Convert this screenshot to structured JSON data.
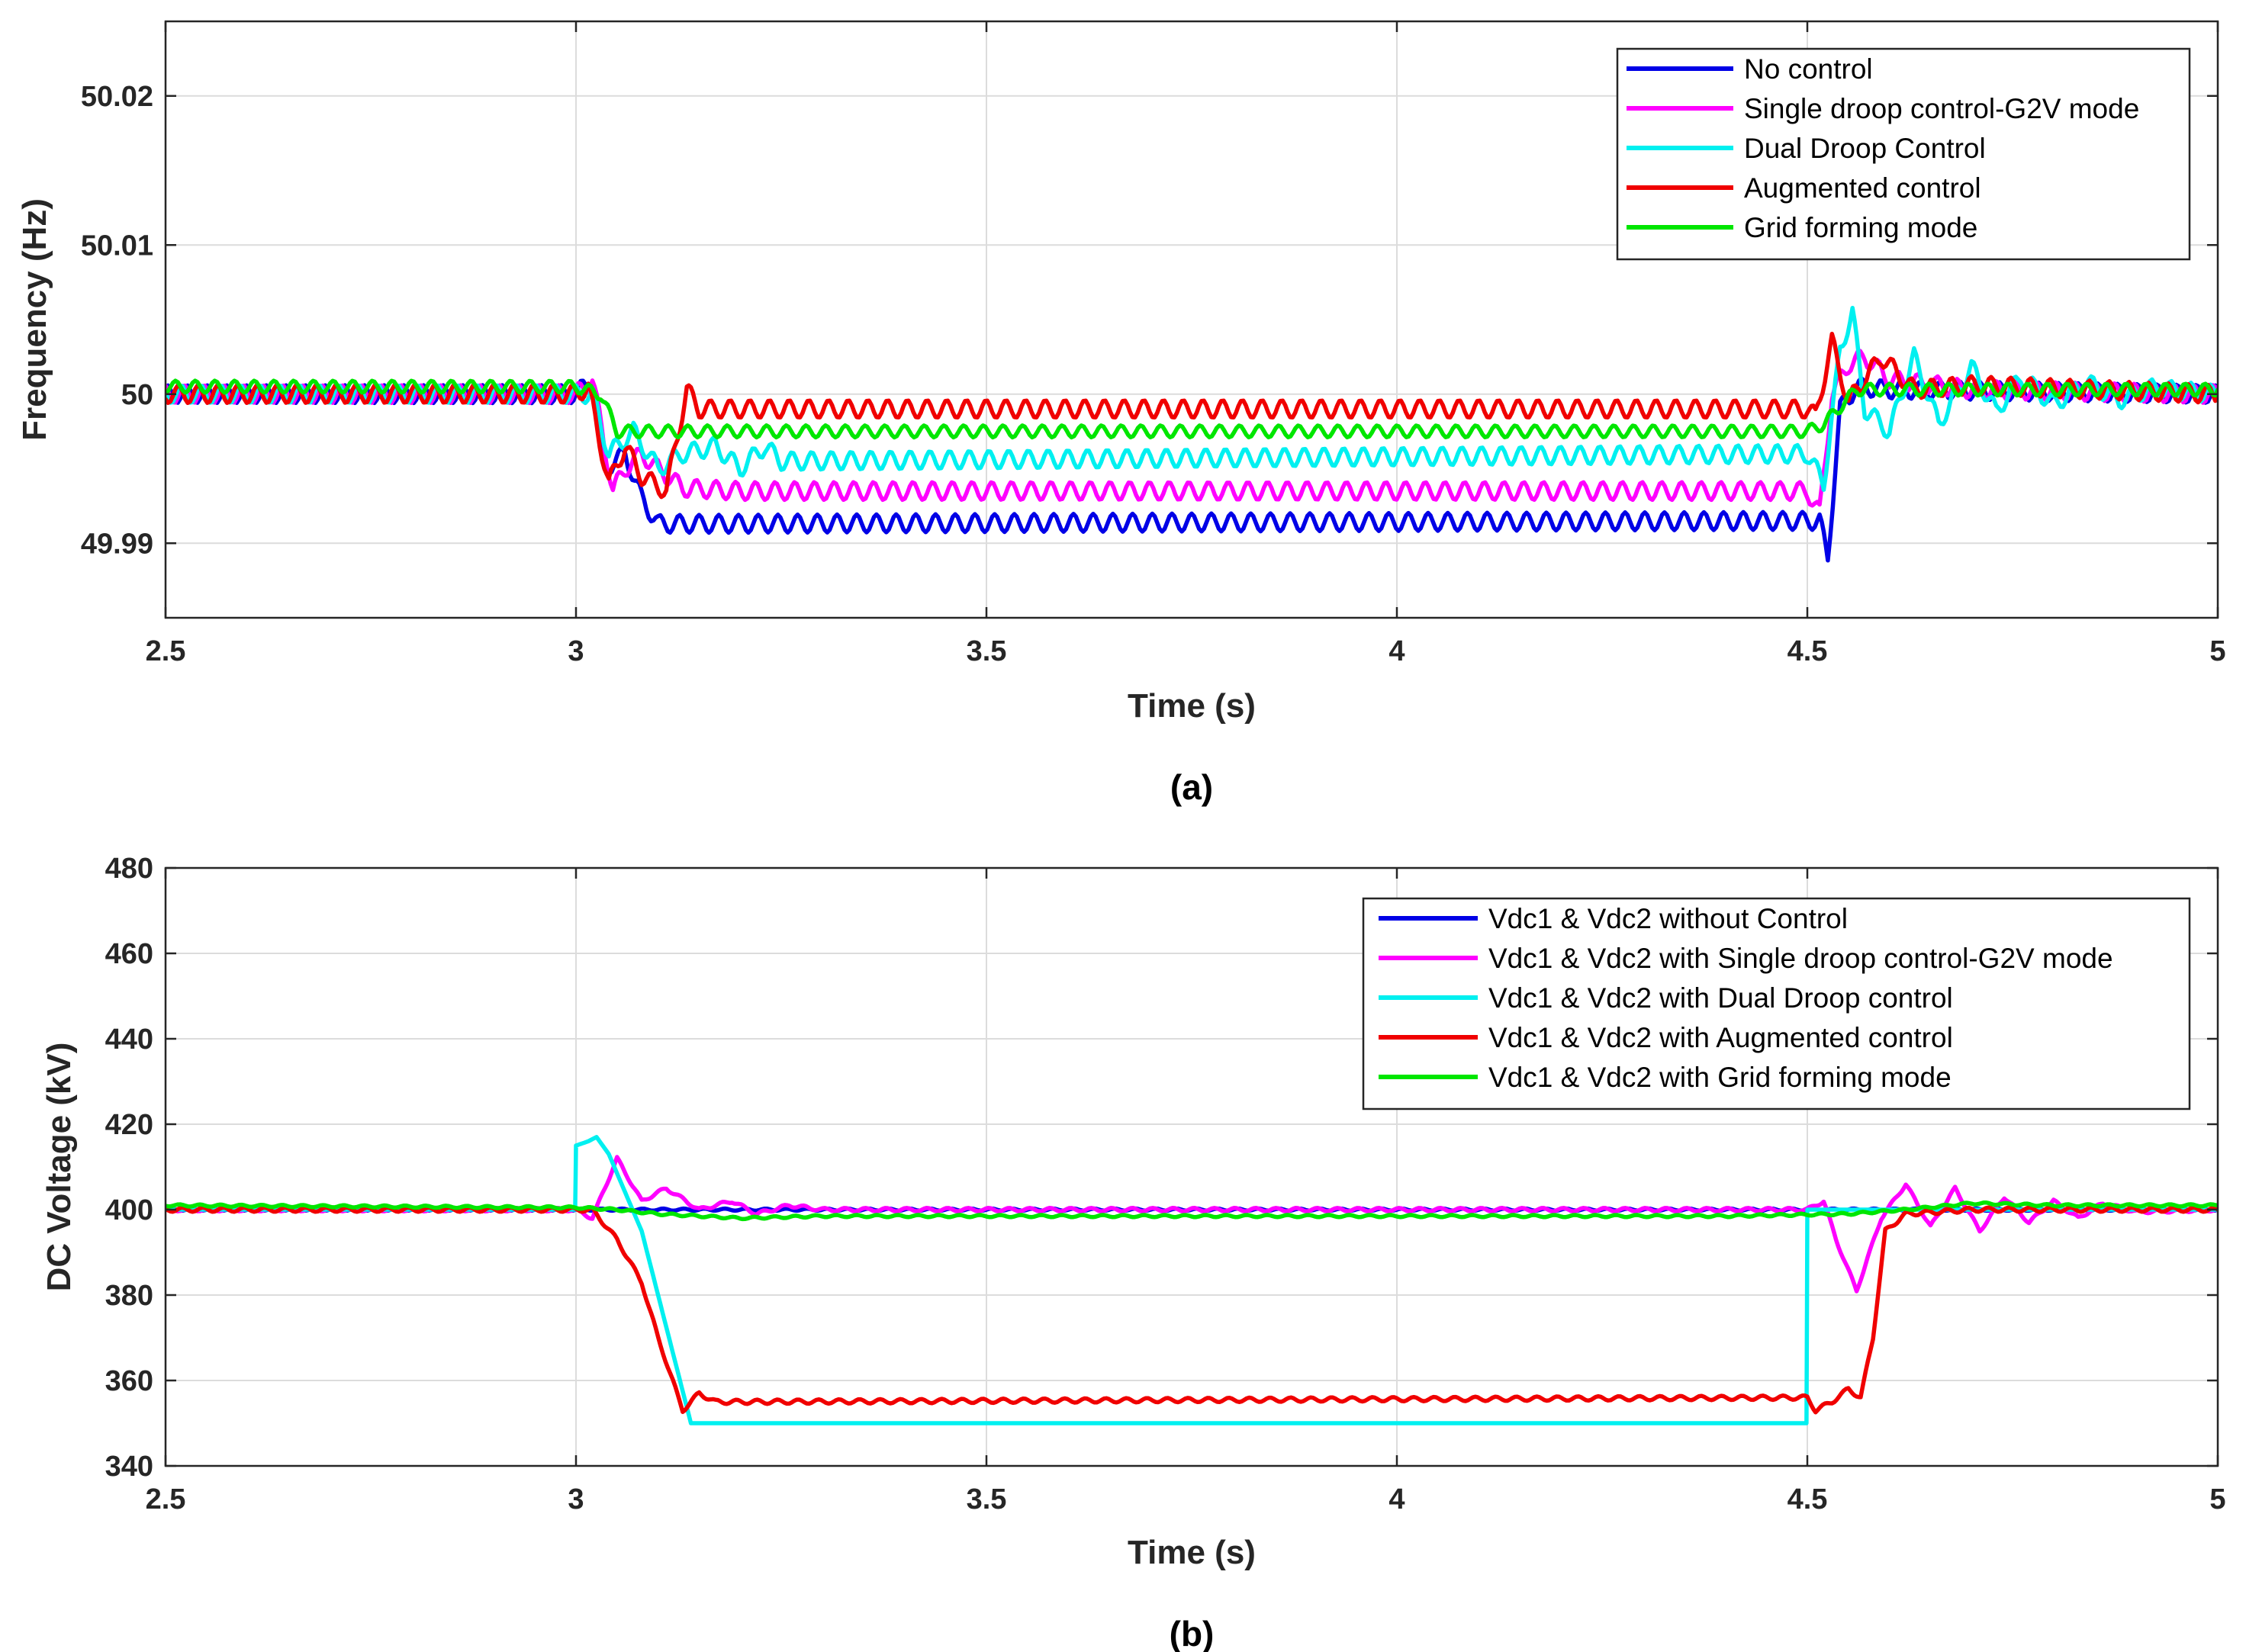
{
  "chart_data": [
    {
      "type": "line",
      "caption": "(a)",
      "xlabel": "Time (s)",
      "ylabel": "Frequency (Hz)",
      "xlim": [
        2.5,
        5
      ],
      "ylim": [
        49.985,
        50.025
      ],
      "xticks": [
        2.5,
        3,
        3.5,
        4,
        4.5,
        5
      ],
      "xtick_labels": [
        "2.5",
        "3",
        "3.5",
        "4",
        "4.5",
        "5"
      ],
      "yticks": [
        49.99,
        50,
        50.01,
        50.02
      ],
      "ytick_labels": [
        "49.99",
        "50",
        "50.01",
        "50.02"
      ],
      "grid": true,
      "legend_position": "top-right",
      "series": [
        {
          "name": "No control",
          "color": "#0000e6",
          "x": [
            2.5,
            3.0,
            3.02,
            3.035,
            3.06,
            3.08,
            3.1,
            3.15,
            4.5,
            4.515,
            4.525,
            4.54,
            4.56,
            4.6,
            5.0
          ],
          "y": [
            50.0,
            50.0,
            50.001,
            49.995,
            49.996,
            49.993,
            49.9913,
            49.9913,
            49.9915,
            49.9915,
            49.989,
            49.999,
            50.0005,
            50.0003,
            50.0
          ]
        },
        {
          "name": "Single droop control-G2V mode",
          "color": "#ff00ff",
          "x": [
            2.5,
            3.0,
            3.02,
            3.045,
            3.06,
            3.08,
            3.1,
            3.13,
            3.2,
            4.5,
            4.515,
            4.53,
            4.55,
            4.57,
            4.6,
            4.7,
            5.0
          ],
          "y": [
            50.0,
            50.0,
            50.001,
            49.9935,
            49.995,
            49.996,
            49.995,
            49.9937,
            49.9935,
            49.9935,
            49.992,
            50.0,
            50.002,
            50.0025,
            50.001,
            50.0003,
            50.0
          ]
        },
        {
          "name": "Dual Droop Control",
          "color": "#00f0f0",
          "x": [
            2.5,
            3.0,
            3.02,
            3.04,
            3.07,
            3.1,
            3.13,
            3.17,
            3.2,
            3.23,
            3.25,
            4.5,
            4.52,
            4.54,
            4.555,
            4.57,
            4.6,
            4.63,
            4.66,
            4.7,
            4.73,
            4.76,
            4.8,
            4.84,
            4.88,
            4.92,
            5.0
          ],
          "y": [
            50.0,
            50.0,
            50.0,
            49.996,
            49.9975,
            49.995,
            49.996,
            49.9965,
            49.995,
            49.9965,
            49.9955,
            49.996,
            49.994,
            50.003,
            50.0055,
            49.999,
            49.9975,
            50.0025,
            49.998,
            50.0018,
            49.9988,
            50.0012,
            49.9993,
            50.0008,
            49.9996,
            50.0004,
            50.0
          ]
        },
        {
          "name": "Augmented control",
          "color": "#f00000",
          "x": [
            2.5,
            3.0,
            3.015,
            3.04,
            3.06,
            3.08,
            3.11,
            3.135,
            3.15,
            4.5,
            4.51,
            4.53,
            4.55,
            4.59,
            4.63,
            4.7,
            5.0
          ],
          "y": [
            50.0,
            50.0,
            50.0005,
            49.994,
            49.9965,
            49.9945,
            49.9935,
            50.0003,
            49.999,
            49.999,
            49.9985,
            50.0035,
            49.9995,
            50.0025,
            50.0003,
            50.0006,
            50.0
          ]
        },
        {
          "name": "Grid forming mode",
          "color": "#00e600",
          "x": [
            2.5,
            3.0,
            3.03,
            3.05,
            3.08,
            3.13,
            4.5,
            4.52,
            4.56,
            4.6,
            5.0
          ],
          "y": [
            50.0005,
            50.0005,
            50.0,
            49.9975,
            49.9975,
            49.9975,
            49.9975,
            49.998,
            50.0003,
            50.0003,
            50.0003
          ]
        }
      ]
    },
    {
      "type": "line",
      "caption": "(b)",
      "xlabel": "Time (s)",
      "ylabel": "DC Voltage (kV)",
      "xlim": [
        2.5,
        5
      ],
      "ylim": [
        340,
        480
      ],
      "xticks": [
        2.5,
        3,
        3.5,
        4,
        4.5,
        5
      ],
      "xtick_labels": [
        "2.5",
        "3",
        "3.5",
        "4",
        "4.5",
        "5"
      ],
      "yticks": [
        340,
        360,
        380,
        400,
        420,
        440,
        460,
        480
      ],
      "ytick_labels": [
        "340",
        "360",
        "380",
        "400",
        "420",
        "440",
        "460",
        "480"
      ],
      "grid": true,
      "legend_position": "top-right",
      "series": [
        {
          "name": "Vdc1 & Vdc2 without Control",
          "color": "#0000e6",
          "x": [
            2.5,
            3.0,
            3.05,
            4.5,
            5.0
          ],
          "y": [
            400,
            400,
            400,
            400,
            400
          ]
        },
        {
          "name": "Vdc1 & Vdc2 with Single droop control-G2V mode",
          "color": "#ff00ff",
          "x": [
            2.5,
            3.0,
            3.02,
            3.05,
            3.08,
            3.11,
            3.15,
            3.19,
            3.22,
            3.26,
            3.3,
            3.4,
            4.5,
            4.52,
            4.535,
            4.56,
            4.59,
            4.62,
            4.65,
            4.68,
            4.71,
            4.74,
            4.77,
            4.8,
            4.83,
            4.86,
            4.9,
            5.0
          ],
          "y": [
            400,
            400,
            398,
            412,
            402,
            405,
            400,
            402,
            399,
            401,
            400,
            400,
            400,
            402,
            393,
            381,
            398,
            406,
            396,
            405,
            395,
            403,
            397,
            402,
            398,
            401.5,
            399.5,
            400
          ]
        },
        {
          "name": "Vdc1 & Vdc2 with Dual Droop control",
          "color": "#00f0f0",
          "x": [
            2.5,
            2.999,
            3.0,
            3.015,
            3.025,
            3.04,
            3.08,
            3.12,
            3.14,
            4.499,
            4.5,
            5.0
          ],
          "y": [
            400,
            400,
            415,
            416,
            417,
            413,
            395,
            365,
            350,
            350,
            400,
            400
          ]
        },
        {
          "name": "Vdc1 & Vdc2 with Augmented control",
          "color": "#f00000",
          "x": [
            2.5,
            3.02,
            3.05,
            3.08,
            3.1,
            3.13,
            3.15,
            3.17,
            3.2,
            4.5,
            4.51,
            4.53,
            4.55,
            4.565,
            4.58,
            4.595,
            4.62,
            4.7,
            4.8,
            5.0
          ],
          "y": [
            400,
            400,
            393,
            383,
            370,
            353,
            357,
            355,
            355,
            356,
            353,
            355,
            358,
            356,
            370,
            395,
            399,
            400,
            400,
            400
          ]
        },
        {
          "name": "Vdc1 & Vdc2 with Grid forming mode",
          "color": "#00e600",
          "x": [
            2.5,
            3.0,
            3.05,
            3.1,
            3.2,
            3.3,
            4.4,
            4.55,
            4.62,
            4.7,
            4.8,
            5.0
          ],
          "y": [
            401,
            400.5,
            400,
            399,
            398,
            398.5,
            398.5,
            399,
            400,
            401.5,
            401,
            401
          ]
        }
      ]
    }
  ]
}
